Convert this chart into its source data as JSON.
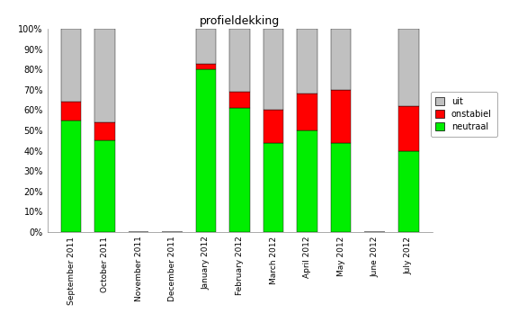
{
  "title": "profieldekking",
  "categories": [
    "September 2011",
    "October 2011",
    "November 2011",
    "December 2011",
    "January 2012",
    "February 2012",
    "March 2012",
    "April 2012",
    "May 2012",
    "June 2012",
    "July 2012"
  ],
  "neutraal": [
    55,
    45,
    0,
    0,
    80,
    61,
    44,
    50,
    44,
    0,
    40
  ],
  "onstabiel": [
    9,
    9,
    0,
    0,
    3,
    8,
    16,
    18,
    26,
    0,
    22
  ],
  "uit": [
    36,
    46,
    0,
    0,
    17,
    31,
    40,
    32,
    30,
    0,
    38
  ],
  "color_neutraal": "#00ee00",
  "color_onstabiel": "#ff0000",
  "color_uit": "#c0c0c0",
  "yticks": [
    0,
    10,
    20,
    30,
    40,
    50,
    60,
    70,
    80,
    90,
    100
  ],
  "yticklabels": [
    "0%",
    "10%",
    "20%",
    "30%",
    "40%",
    "50%",
    "60%",
    "70%",
    "80%",
    "90%",
    "100%"
  ],
  "background_color": "#ffffff",
  "figsize": [
    5.86,
    3.58
  ],
  "dpi": 100
}
